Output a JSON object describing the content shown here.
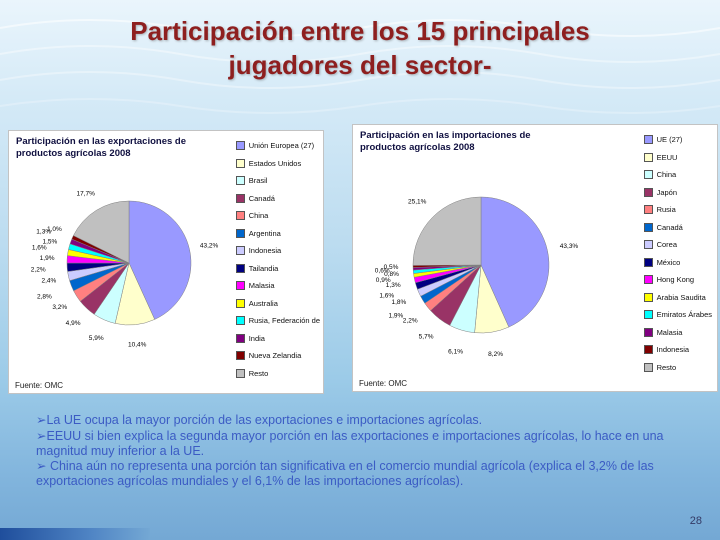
{
  "slide": {
    "title_line1": "Participación entre los 15 principales",
    "title_line2": "jugadores del sector-",
    "title_color": "#8E1F1F",
    "page_number": "28",
    "background_top_color": "#EAF5FC",
    "background_bottom_color": "#74A8D4"
  },
  "bullets": {
    "bullet_char": "➢",
    "text_color": "#3B5BC4",
    "items": [
      "La UE ocupa la mayor porción de las exportaciones e importaciones agrícolas.",
      "EEUU si bien explica la segunda mayor porción en las exportaciones e importaciones agrícolas, lo hace en una magnitud muy inferior a la UE.",
      " China aún no representa una porción tan significativa en el comercio mundial agrícola (explica el 3,2% de las exportaciones agrícolas mundiales y el 6,1% de las importaciones agrícolas)."
    ]
  },
  "chart_data": [
    {
      "type": "pie",
      "title": "Participación en las exportaciones de productos agrícolas 2008",
      "source": "Fuente: OMC",
      "legend_position": "right",
      "categories": [
        "Unión Europea (27)",
        "Estados Unidos",
        "Brasil",
        "Canadá",
        "China",
        "Argentina",
        "Indonesia",
        "Tailandia",
        "Malasia",
        "Australia",
        "Rusia, Federación de",
        "India",
        "Nueva Zelandia",
        "Resto"
      ],
      "values": [
        43.2,
        10.4,
        5.9,
        4.9,
        3.2,
        2.8,
        2.4,
        2.2,
        1.9,
        1.6,
        1.5,
        1.3,
        1.0,
        17.7
      ],
      "colors": [
        "#9999FF",
        "#FFFFCC",
        "#CCFFFF",
        "#993366",
        "#FF8080",
        "#0066CC",
        "#CCCCFF",
        "#000080",
        "#FF00FF",
        "#FFFF00",
        "#00FFFF",
        "#800080",
        "#800000",
        "#C0C0C0"
      ]
    },
    {
      "type": "pie",
      "title": "Participación en las importaciones de productos agrícolas 2008",
      "source": "Fuente: OMC",
      "legend_position": "right",
      "categories": [
        "UE (27)",
        "EEUU",
        "China",
        "Japón",
        "Rusia",
        "Canadá",
        "Corea",
        "México",
        "Hong Kong",
        "Arabia Saudita",
        "Emiratos Árabes",
        "Malasia",
        "Indonesia",
        "Resto"
      ],
      "values": [
        43.3,
        8.2,
        6.1,
        5.7,
        2.2,
        1.9,
        1.8,
        1.6,
        1.3,
        0.9,
        0.8,
        0.6,
        0.5,
        25.1
      ],
      "colors": [
        "#9999FF",
        "#FFFFCC",
        "#CCFFFF",
        "#993366",
        "#FF8080",
        "#0066CC",
        "#CCCCFF",
        "#000080",
        "#FF00FF",
        "#FFFF00",
        "#00FFFF",
        "#800080",
        "#800000",
        "#C0C0C0"
      ]
    }
  ]
}
